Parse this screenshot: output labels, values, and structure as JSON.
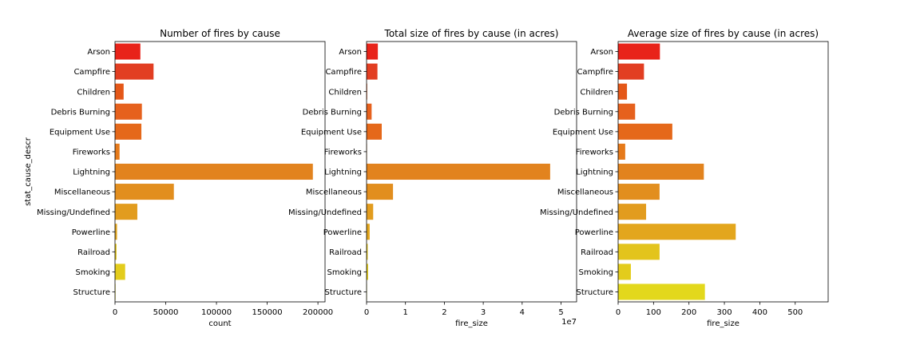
{
  "colors": [
    "#e8231a",
    "#e23e22",
    "#e45718",
    "#e6611d",
    "#e5681a",
    "#e67a1a",
    "#e2831e",
    "#e28e1e",
    "#e29c1e",
    "#e3a61d",
    "#e3c41c",
    "#e3cc1c",
    "#e3d81c"
  ],
  "chart_data": [
    {
      "type": "bar",
      "orientation": "horizontal",
      "title": "Number of fires by cause",
      "xlabel": "count",
      "ylabel": "stat_cause_descr",
      "categories": [
        "Arson",
        "Campfire",
        "Children",
        "Debris Burning",
        "Equipment Use",
        "Fireworks",
        "Lightning",
        "Miscellaneous",
        "Missing/Undefined",
        "Powerline",
        "Railroad",
        "Smoking",
        "Structure"
      ],
      "values": [
        25000,
        38000,
        8500,
        26500,
        26000,
        4500,
        195000,
        58000,
        22000,
        2000,
        1500,
        10000,
        500
      ],
      "xlim": [
        0,
        207000
      ],
      "xticks": [
        0,
        50000,
        100000,
        150000,
        200000
      ],
      "xtick_labels": [
        "0",
        "50000",
        "100000",
        "150000",
        "200000"
      ],
      "offset_label": ""
    },
    {
      "type": "bar",
      "orientation": "horizontal",
      "title": "Total size of fires by cause (in acres)",
      "xlabel": "fire_size",
      "ylabel": "",
      "categories": [
        "Arson",
        "Campfire",
        "Children",
        "Debris Burning",
        "Equipment Use",
        "Fireworks",
        "Lightning",
        "Miscellaneous",
        "Missing/Undefined",
        "Powerline",
        "Railroad",
        "Smoking",
        "Structure"
      ],
      "values": [
        2900000,
        2800000,
        150000,
        1300000,
        3900000,
        100000,
        47200000,
        6800000,
        1700000,
        800000,
        300000,
        400000,
        100000
      ],
      "xlim": [
        0,
        54000000
      ],
      "xticks": [
        0,
        10000000,
        20000000,
        30000000,
        40000000,
        50000000
      ],
      "xtick_labels": [
        "0",
        "1",
        "2",
        "3",
        "4",
        "5"
      ],
      "offset_label": "1e7"
    },
    {
      "type": "bar",
      "orientation": "horizontal",
      "title": "Average size of fires by cause (in acres)",
      "xlabel": "fire_size",
      "ylabel": "",
      "categories": [
        "Arson",
        "Campfire",
        "Children",
        "Debris Burning",
        "Equipment Use",
        "Fireworks",
        "Lightning",
        "Miscellaneous",
        "Missing/Undefined",
        "Powerline",
        "Railroad",
        "Smoking",
        "Structure"
      ],
      "values": [
        118,
        73,
        25,
        48,
        153,
        20,
        242,
        117,
        79,
        332,
        117,
        36,
        245
      ],
      "xlim": [
        0,
        593
      ],
      "xticks": [
        0,
        100,
        200,
        300,
        400,
        500
      ],
      "xtick_labels": [
        "0",
        "100",
        "200",
        "300",
        "400",
        "500"
      ],
      "offset_label": ""
    }
  ]
}
